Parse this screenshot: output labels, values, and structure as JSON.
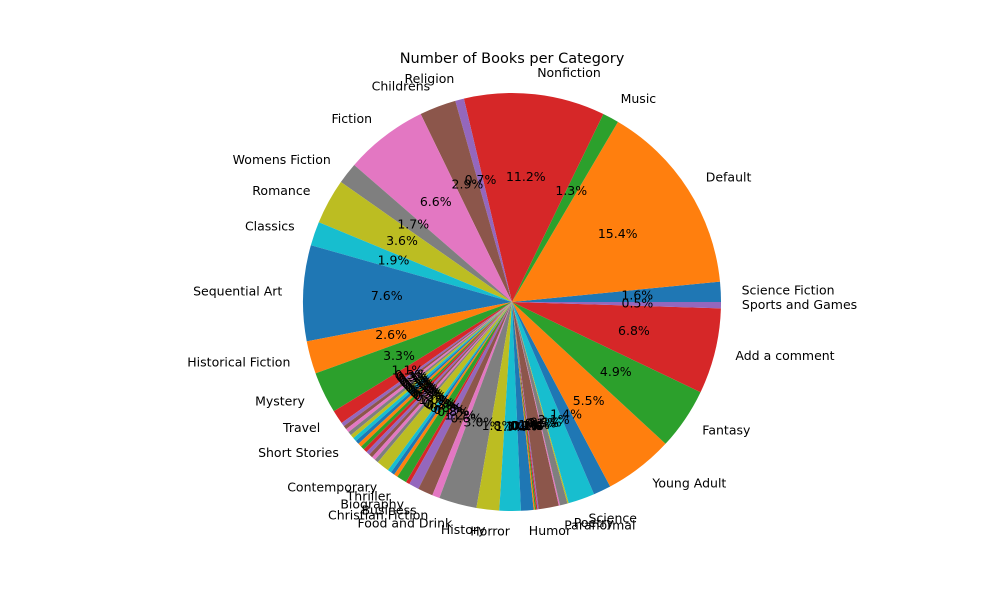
{
  "chart_data": {
    "type": "pie",
    "title": "Number of Books per Category",
    "palette": [
      "#1f77b4",
      "#ff7f0e",
      "#2ca02c",
      "#d62728",
      "#9467bd",
      "#8c564b",
      "#e377c2",
      "#7f7f7f",
      "#bcbd22",
      "#17becf"
    ],
    "start_angle_deg": 0,
    "slices": [
      {
        "label": "Science Fiction",
        "percent": 1.6
      },
      {
        "label": "Default",
        "percent": 15.4
      },
      {
        "label": "Music",
        "percent": 1.3
      },
      {
        "label": "Nonfiction",
        "percent": 11.2
      },
      {
        "label": "Religion",
        "percent": 0.7
      },
      {
        "label": "Childrens",
        "percent": 2.9
      },
      {
        "label": "Fiction",
        "percent": 6.6
      },
      {
        "label": "Womens Fiction",
        "percent": 1.7
      },
      {
        "label": "Romance",
        "percent": 3.6
      },
      {
        "label": "Classics",
        "percent": 1.9
      },
      {
        "label": "Sequential Art",
        "percent": 7.6
      },
      {
        "label": "Historical Fiction",
        "percent": 2.6
      },
      {
        "label": "Mystery",
        "percent": 3.3
      },
      {
        "label": "Travel",
        "percent": 1.1
      },
      {
        "label": "",
        "percent": 0.3
      },
      {
        "label": "",
        "percent": 0.3
      },
      {
        "label": "",
        "percent": 0.3
      },
      {
        "label": "",
        "percent": 0.3
      },
      {
        "label": "",
        "percent": 0.3
      },
      {
        "label": "Short Stories",
        "percent": 0.3
      },
      {
        "label": "",
        "percent": 0.3
      },
      {
        "label": "",
        "percent": 0.3
      },
      {
        "label": "",
        "percent": 0.3
      },
      {
        "label": "",
        "percent": 0.3
      },
      {
        "label": "",
        "percent": 0.3
      },
      {
        "label": "",
        "percent": 0.3
      },
      {
        "label": "",
        "percent": 0.3
      },
      {
        "label": "",
        "percent": 0.3
      },
      {
        "label": "",
        "percent": 1.0
      },
      {
        "label": "Contemporary",
        "percent": 0.3
      },
      {
        "label": "",
        "percent": 0.3
      },
      {
        "label": "",
        "percent": 0.3
      },
      {
        "label": "Thriller",
        "percent": 0.8
      },
      {
        "label": "",
        "percent": 0.3
      },
      {
        "label": "Biography",
        "percent": 0.8
      },
      {
        "label": "Business",
        "percent": 1.2
      },
      {
        "label": "Christian Fiction",
        "percent": 0.6
      },
      {
        "label": "Food and Drink",
        "percent": 3.0
      },
      {
        "label": "History",
        "percent": 1.8
      },
      {
        "label": "Horror",
        "percent": 1.7
      },
      {
        "label": "Humor",
        "percent": 1.0
      },
      {
        "label": "",
        "percent": 0.1
      },
      {
        "label": "",
        "percent": 0.1
      },
      {
        "label": "",
        "percent": 0.1
      },
      {
        "label": "",
        "percent": 0.1
      },
      {
        "label": "",
        "percent": 1.6
      },
      {
        "label": "Paranormal",
        "percent": 0.1
      },
      {
        "label": "",
        "percent": 0.6
      },
      {
        "label": "Poetry",
        "percent": 0.1
      },
      {
        "label": "Science",
        "percent": 2.1
      },
      {
        "label": "",
        "percent": 1.4
      },
      {
        "label": "Young Adult",
        "percent": 5.5
      },
      {
        "label": "Fantasy",
        "percent": 4.9
      },
      {
        "label": "Add a comment",
        "percent": 6.8
      },
      {
        "label": "Sports and Games",
        "percent": 0.5
      }
    ]
  }
}
